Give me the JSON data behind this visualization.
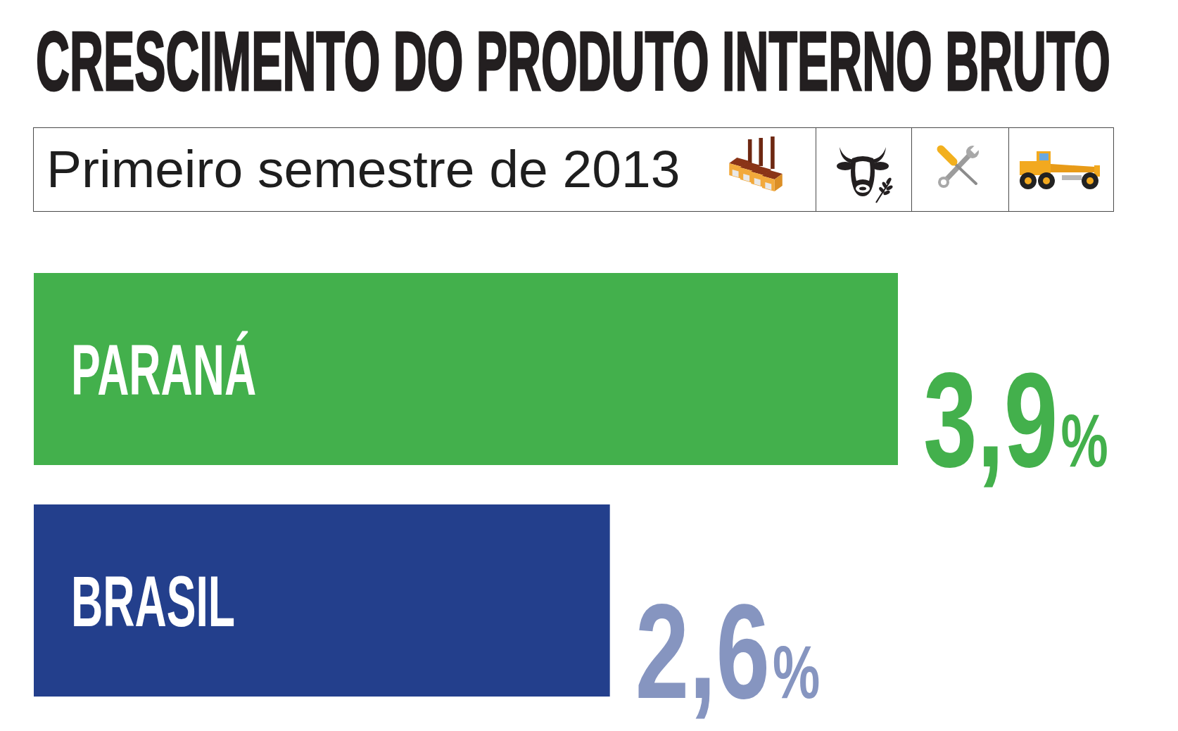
{
  "chart_data": {
    "type": "bar",
    "orientation": "horizontal",
    "title": "CRESCIMENTO DO PRODUTO INTERNO BRUTO",
    "subtitle": "Primeiro semestre de 2013",
    "categories": [
      "PARANÁ",
      "BRASIL"
    ],
    "values": [
      3.9,
      2.6
    ],
    "colors": [
      "#43b04c",
      "#233f8c"
    ],
    "value_labels": [
      "3,9%",
      "2,6%"
    ],
    "tick_labels": "y"
  }
}
